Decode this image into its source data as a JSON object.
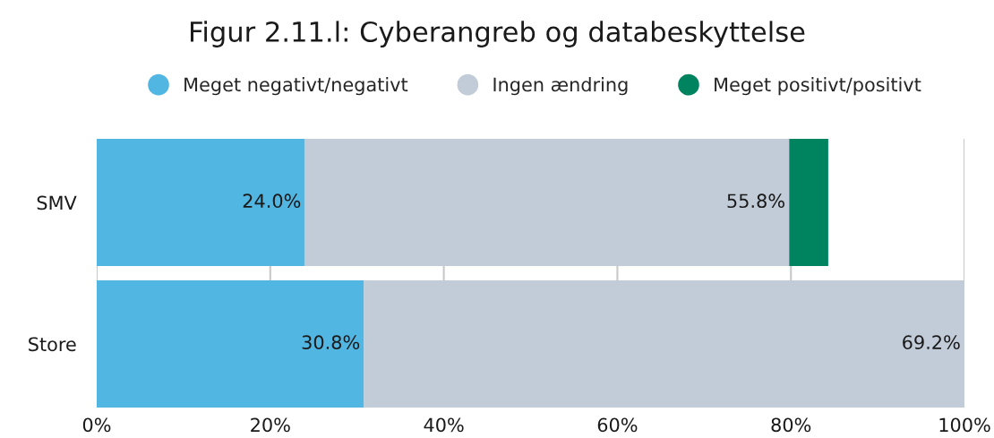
{
  "chart_data": {
    "type": "bar",
    "orientation": "horizontal",
    "stacked": true,
    "title": "Figur 2.11.l: Cyberangreb og databeskyttelse",
    "categories": [
      "SMV",
      "Store"
    ],
    "series": [
      {
        "name": "Meget negativt/negativt",
        "color": "#52b6e3",
        "values": [
          24.0,
          30.8
        ],
        "value_labels": [
          "24.0%",
          "30.8%"
        ]
      },
      {
        "name": "Ingen ændring",
        "color": "#c2ccd8",
        "values": [
          55.8,
          69.2
        ],
        "value_labels": [
          "55.8%",
          "69.2%"
        ]
      },
      {
        "name": "Meget positivt/positivt",
        "color": "#00835f",
        "values": [
          4.5,
          null
        ]
      }
    ],
    "xlim": [
      0,
      100
    ],
    "xticks": [
      {
        "value": 0,
        "label": "0%"
      },
      {
        "value": 20,
        "label": "20%"
      },
      {
        "value": 40,
        "label": "40%"
      },
      {
        "value": 60,
        "label": "60%"
      },
      {
        "value": 80,
        "label": "80%"
      },
      {
        "value": 100,
        "label": "100%"
      }
    ],
    "grid": "x",
    "legend": "top"
  }
}
